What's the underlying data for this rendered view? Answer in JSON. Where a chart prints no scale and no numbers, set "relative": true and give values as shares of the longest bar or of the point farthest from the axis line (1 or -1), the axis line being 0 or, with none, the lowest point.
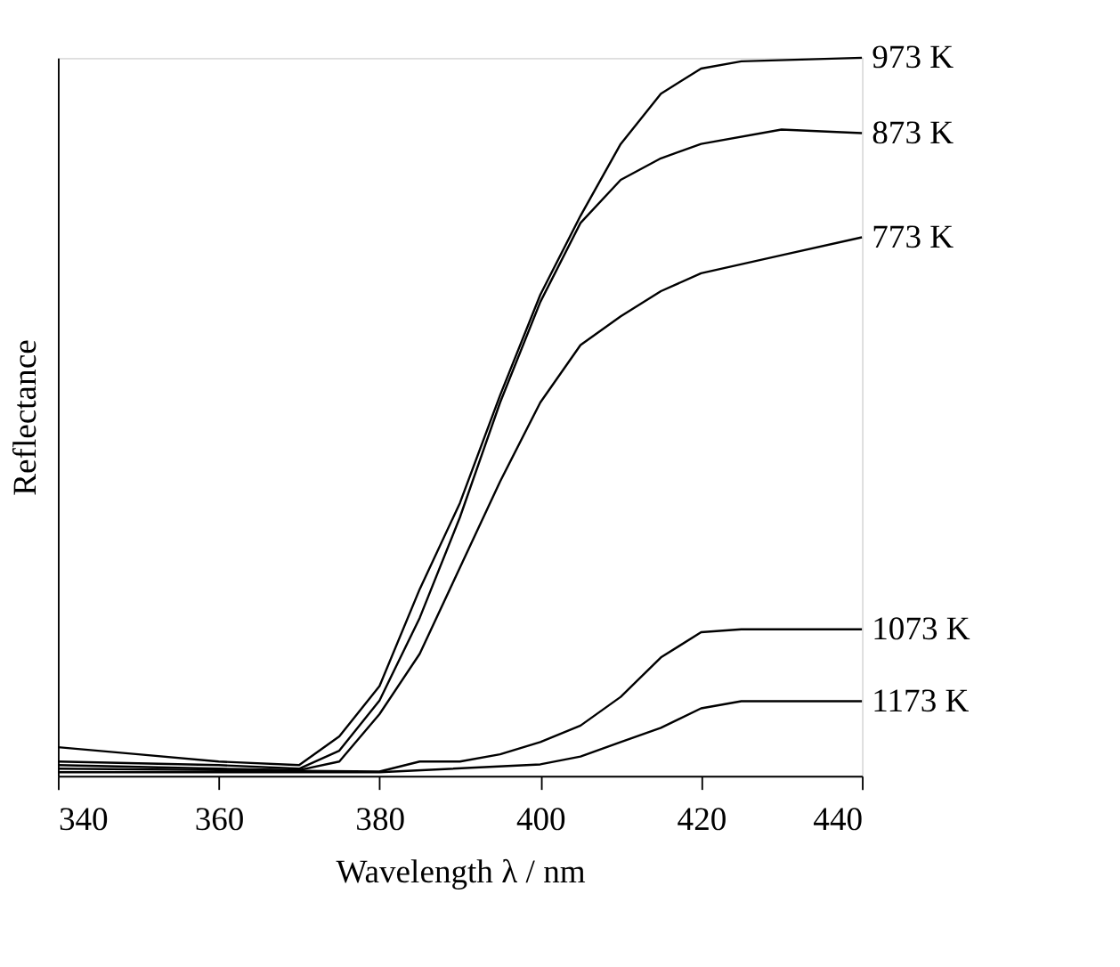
{
  "chart_data": {
    "type": "line",
    "relative": true,
    "xlabel": "Wavelength λ / nm",
    "ylabel": "Reflectance",
    "xlim": [
      340,
      440
    ],
    "xticks": [
      340,
      360,
      380,
      400,
      420,
      440
    ],
    "grid": false,
    "legend": false,
    "marker": "none",
    "line_style": "solid",
    "series": [
      {
        "name": "973 K",
        "color": "#000000",
        "x": [
          340,
          350,
          360,
          370,
          375,
          380,
          385,
          390,
          395,
          400,
          405,
          410,
          415,
          420,
          425,
          440
        ],
        "values": [
          0.04,
          0.03,
          0.02,
          0.015,
          0.055,
          0.125,
          0.26,
          0.38,
          0.53,
          0.67,
          0.78,
          0.88,
          0.95,
          0.985,
          0.995,
          1
        ]
      },
      {
        "name": "873 K",
        "color": "#000000",
        "x": [
          340,
          360,
          370,
          375,
          380,
          385,
          390,
          395,
          400,
          405,
          410,
          415,
          420,
          430,
          440
        ],
        "values": [
          0.02,
          0.015,
          0.01,
          0.035,
          0.105,
          0.22,
          0.36,
          0.52,
          0.66,
          0.77,
          0.83,
          0.86,
          0.88,
          0.9,
          0.895
        ]
      },
      {
        "name": "773 K",
        "color": "#000000",
        "x": [
          340,
          360,
          370,
          375,
          380,
          385,
          390,
          395,
          400,
          405,
          410,
          415,
          420,
          430,
          440
        ],
        "values": [
          0.015,
          0.01,
          0.008,
          0.02,
          0.086,
          0.17,
          0.29,
          0.41,
          0.52,
          0.6,
          0.64,
          0.675,
          0.7,
          0.725,
          0.75
        ]
      },
      {
        "name": "1073 K",
        "color": "#000000",
        "x": [
          340,
          360,
          380,
          385,
          390,
          395,
          400,
          405,
          410,
          415,
          420,
          425,
          440
        ],
        "values": [
          0.01,
          0.008,
          0.006,
          0.02,
          0.02,
          0.03,
          0.047,
          0.07,
          0.11,
          0.165,
          0.2,
          0.204,
          0.204
        ]
      },
      {
        "name": "1173 K",
        "color": "#000000",
        "x": [
          340,
          360,
          380,
          400,
          405,
          410,
          415,
          420,
          425,
          440
        ],
        "values": [
          0.005,
          0.005,
          0.005,
          0.016,
          0.027,
          0.047,
          0.067,
          0.094,
          0.104,
          0.104
        ]
      }
    ]
  }
}
